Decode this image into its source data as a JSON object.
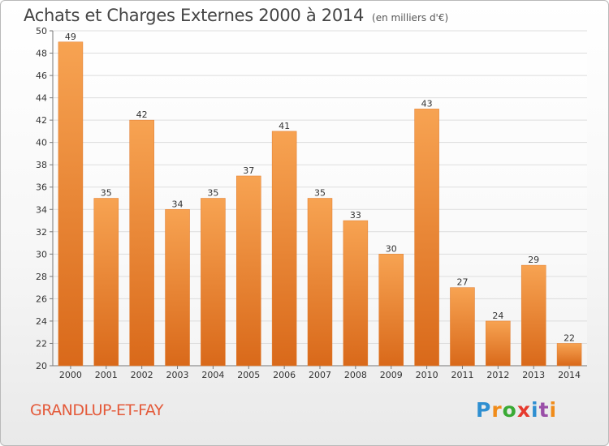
{
  "header": {
    "title": "Achats et Charges Externes 2000 à 2014",
    "subtitle": "(en milliers d'€)"
  },
  "footer": {
    "place_name": "GRANDLUP-ET-FAY",
    "brand": "Proxiti",
    "brand_colors": [
      "#2f8fd1",
      "#f08c1a",
      "#3aaa35",
      "#e63a2e",
      "#2f8fd1",
      "#9a4fa8",
      "#f08c1a"
    ]
  },
  "chart_data": {
    "type": "bar",
    "categories": [
      "2000",
      "2001",
      "2002",
      "2003",
      "2004",
      "2005",
      "2006",
      "2007",
      "2008",
      "2009",
      "2010",
      "2011",
      "2012",
      "2013",
      "2014"
    ],
    "values": [
      49,
      35,
      42,
      34,
      35,
      37,
      41,
      35,
      33,
      30,
      43,
      27,
      24,
      29,
      22
    ],
    "title": "Achats et Charges Externes 2000 à 2014",
    "subtitle": "(en milliers d'€)",
    "ylim": [
      20,
      50
    ],
    "yticks": [
      20,
      22,
      24,
      26,
      28,
      30,
      32,
      34,
      36,
      38,
      40,
      42,
      44,
      46,
      48,
      50
    ],
    "grid": true,
    "bar_color_light": "#f7a352",
    "bar_color_dark": "#d9691a",
    "grid_color": "#dddddd"
  }
}
